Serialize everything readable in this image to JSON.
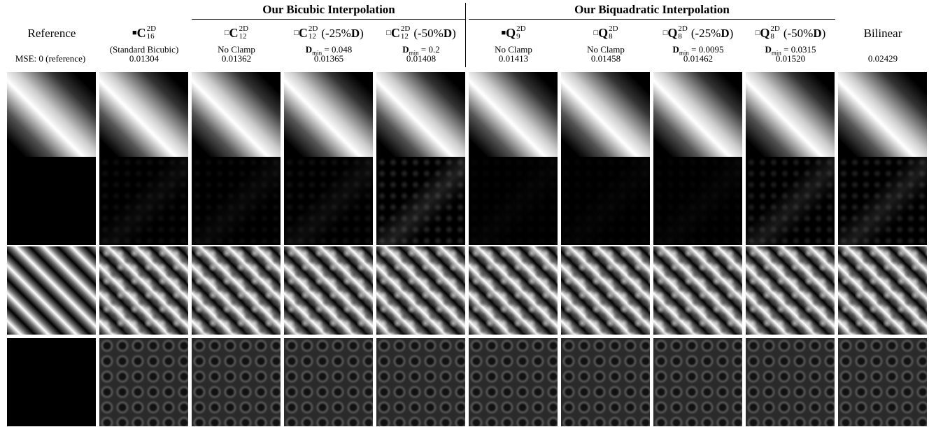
{
  "groups": [
    {
      "title": "Our Bicubic Interpolation"
    },
    {
      "title": "Our Biquadratic Interpolation"
    }
  ],
  "columns": [
    {
      "name": "Reference",
      "mse": "MSE: 0 (reference)"
    },
    {
      "marker": "■",
      "symbol": "C",
      "sup": "2D",
      "sub": "16",
      "note": "(Standard Bicubic)",
      "mse": "0.01304"
    },
    {
      "marker": "□",
      "symbol": "C",
      "sup": "2D",
      "sub": "12",
      "note": "No Clamp",
      "mse": "0.01362"
    },
    {
      "marker": "□",
      "symbol": "C",
      "sup": "2D",
      "sub": "12",
      "suffix": [
        "(-25%",
        "D",
        ")"
      ],
      "dmin": {
        "symbol": "D",
        "sub": "min",
        "value": "= 0.048"
      },
      "mse": "0.01365"
    },
    {
      "marker": "□",
      "symbol": "C",
      "sup": "2D",
      "sub": "12",
      "suffix": [
        "(-50%",
        "D",
        ")"
      ],
      "dmin": {
        "symbol": "D",
        "sub": "min",
        "value": "= 0.2"
      },
      "mse": "0.01408"
    },
    {
      "marker": "■",
      "symbol": "Q",
      "sup": "2D",
      "sub": "9",
      "note": "No Clamp",
      "mse": "0.01413"
    },
    {
      "marker": "□",
      "symbol": "Q",
      "sup": "2D",
      "sub": "8",
      "note": "No Clamp",
      "mse": "0.01458"
    },
    {
      "marker": "□",
      "symbol": "Q",
      "sup": "2D",
      "sub": "8",
      "suffix": [
        "(-25%",
        "D",
        ")"
      ],
      "dmin": {
        "symbol": "D",
        "sub": "min",
        "value": "= 0.0095"
      },
      "mse": "0.01462"
    },
    {
      "marker": "□",
      "symbol": "Q",
      "sup": "2D",
      "sub": "8",
      "suffix": [
        "(-50%",
        "D",
        ")"
      ],
      "dmin": {
        "symbol": "D",
        "sub": "min",
        "value": "= 0.0315"
      },
      "mse": "0.01520"
    },
    {
      "name": "Bilinear",
      "mse": "0.02429"
    }
  ]
}
